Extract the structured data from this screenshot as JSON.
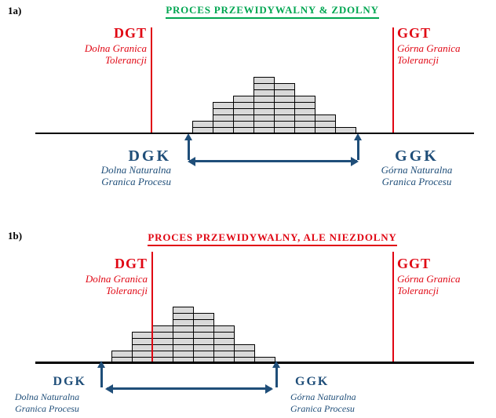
{
  "colors": {
    "title_capable_green": "#00a651",
    "title_not_capable_red": "#e00613",
    "tolerance_line_red": "#e00613",
    "natural_limit_blue": "#1f4e79",
    "bar_fill": "#d9d9d9",
    "bar_border": "#000000",
    "axis": "#000000"
  },
  "sections": [
    {
      "index_label": "1a)",
      "title": "PROCES PRZEWIDYWALNY & ZDOLNY",
      "dgt_abbr": "DGT",
      "dgt_line1": "Dolna Granica",
      "dgt_line2": "Tolerancji",
      "ggt_abbr": "GGT",
      "ggt_line1": "Górna Granica",
      "ggt_line2": "Tolerancji",
      "dgk_abbr": "DGK",
      "dgk_line1": "Dolna Naturalna",
      "dgk_line2": "Granica Procesu",
      "ggk_abbr": "GGK",
      "ggk_line1": "Górna Naturalna",
      "ggk_line2": "Granica Procesu"
    },
    {
      "index_label": "1b)",
      "title": "PROCES PRZEWIDYWALNY, ALE NIEZDOLNY",
      "dgt_abbr": "DGT",
      "dgt_line1": "Dolna Granica",
      "dgt_line2": "Tolerancji",
      "ggt_abbr": "GGT",
      "ggt_line1": "Górna Granica",
      "ggt_line2": "Tolerancji",
      "dgk_abbr": "DGK",
      "dgk_line1": "Dolna Naturalna",
      "dgk_line2": "Granica Procesu",
      "ggk_abbr": "GGK",
      "ggk_line1": "Górna Naturalna",
      "ggk_line2": "Granica Procesu"
    }
  ],
  "chart_data": [
    {
      "type": "bar",
      "subtype": "histogram",
      "title": "PROCES PRZEWIDYWALNY & ZDOLNY",
      "values": [
        2,
        5,
        6,
        9,
        8,
        6,
        3,
        1
      ],
      "bins": 8,
      "ylim": [
        0,
        9
      ],
      "grid": "cell-grid-on-bars",
      "annotations": [
        "DGT Dolna Granica Tolerancji (red line, left)",
        "GGT Górna Granica Tolerancji (red line, right)",
        "DGK Dolna Naturalna Granica Procesu (blue arrow, left)",
        "GGK Górna Naturalna Granica Procesu (blue arrow, right)"
      ],
      "layout": {
        "histogram_position": "entirely between tolerance lines"
      }
    },
    {
      "type": "bar",
      "subtype": "histogram",
      "title": "PROCES PRZEWIDYWALNY, ALE NIEZDOLNY",
      "values": [
        2,
        5,
        6,
        9,
        8,
        6,
        3,
        1
      ],
      "bins": 8,
      "ylim": [
        0,
        9
      ],
      "grid": "cell-grid-on-bars",
      "annotations": [
        "DGT Dolna Granica Tolerancji (red line, left)",
        "GGT Górna Granica Tolerancji (red line, right)",
        "DGK Dolna Naturalna Granica Procesu (blue arrow, left)",
        "GGK Górna Naturalna Granica Procesu (blue arrow, right)"
      ],
      "layout": {
        "histogram_position": "shifted left, crosses lower tolerance line DGT"
      }
    }
  ]
}
